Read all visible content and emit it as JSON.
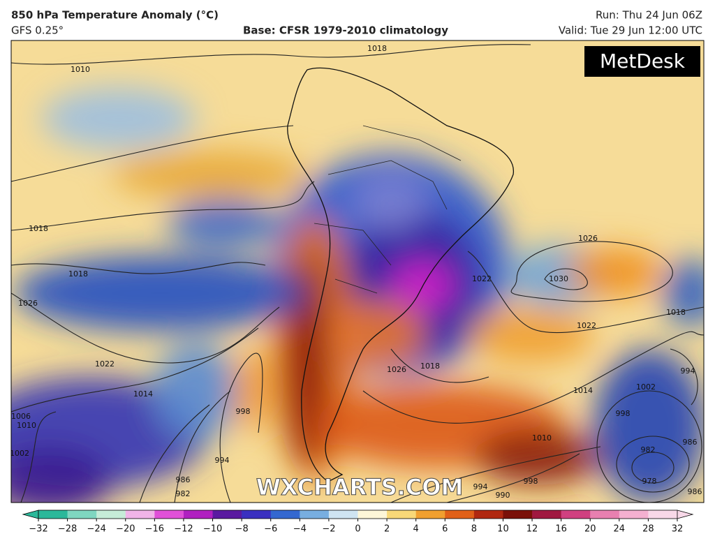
{
  "header": {
    "title": "850 hPa Temperature Anomaly (°C)",
    "model": "GFS 0.25°",
    "base": "Base: CFSR 1979-2010 climatology",
    "run": "Run: Thu 24 Jun 06Z",
    "valid": "Valid: Tue 29 Jun 12:00 UTC"
  },
  "logo": "MetDesk",
  "watermark": "WXCHARTS.COM",
  "isobar_labels": [
    "1010",
    "1018",
    "1018",
    "1018",
    "1026",
    "1022",
    "1014",
    "1006",
    "1010",
    "1002",
    "998",
    "994",
    "986",
    "982",
    "1026",
    "1030",
    "1022",
    "1022",
    "1018",
    "1026",
    "1018",
    "1014",
    "1002",
    "998",
    "994",
    "1010",
    "986",
    "982",
    "978",
    "990",
    "994",
    "986",
    "998"
  ],
  "colorbar": {
    "ticks": [
      {
        "value": -32,
        "label": "−32"
      },
      {
        "value": -28,
        "label": "−28"
      },
      {
        "value": -24,
        "label": "−24"
      },
      {
        "value": -20,
        "label": "−20"
      },
      {
        "value": -16,
        "label": "−16"
      },
      {
        "value": -12,
        "label": "−12"
      },
      {
        "value": -10,
        "label": "−10"
      },
      {
        "value": -8,
        "label": "−8"
      },
      {
        "value": -6,
        "label": "−6"
      },
      {
        "value": -4,
        "label": "−4"
      },
      {
        "value": -2,
        "label": "−2"
      },
      0,
      2,
      4,
      6,
      8,
      10,
      12,
      16,
      20,
      24,
      28,
      32
    ],
    "colors": [
      "#2bb89a",
      "#7fd6c0",
      "#c6ecd8",
      "#f0b4e8",
      "#e050d8",
      "#b020c0",
      "#5a1aa0",
      "#3a30c0",
      "#3468d0",
      "#78aee0",
      "#cfe4f2",
      "#fdf6d8",
      "#f8d878",
      "#f0a030",
      "#e06018",
      "#b02810",
      "#7a1008",
      "#a01840",
      "#d04080",
      "#e880b0",
      "#f4b0d0",
      "#f8d8e8"
    ]
  }
}
